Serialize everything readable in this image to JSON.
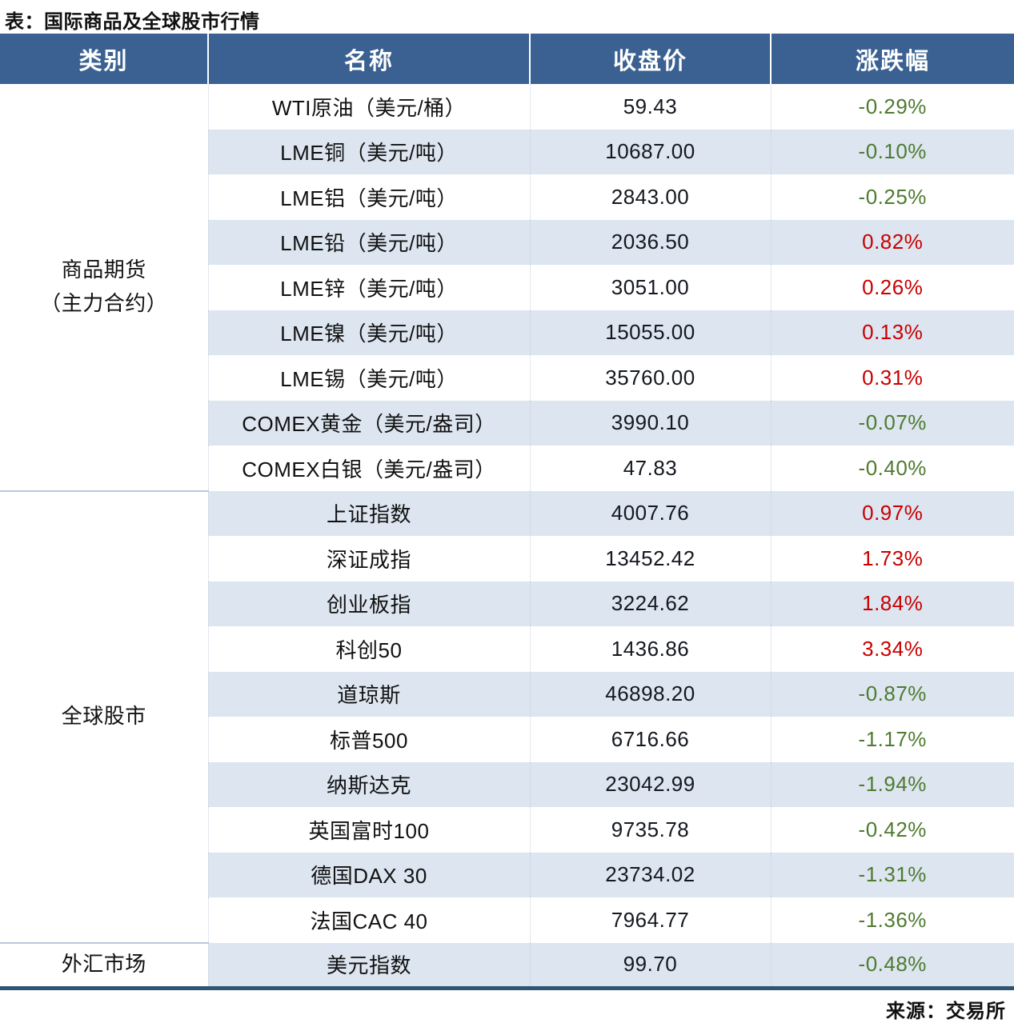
{
  "title": "表：国际商品及全球股市行情",
  "source": "来源：交易所",
  "colors": {
    "header_bg": "#3A6191",
    "stripe_bg": "#DCE5F0",
    "up_red": "#C80000",
    "down_green": "#4E7B2F",
    "bottom_border": "#2F5574"
  },
  "table": {
    "headers": [
      "类别",
      "名称",
      "收盘价",
      "涨跌幅"
    ],
    "sections": [
      {
        "category_lines": [
          "商品期货",
          "（主力合约）"
        ],
        "rows": [
          {
            "name": "WTI原油（美元/桶）",
            "close": "59.43",
            "change": "-0.29%",
            "direction": "down"
          },
          {
            "name": "LME铜（美元/吨）",
            "close": "10687.00",
            "change": "-0.10%",
            "direction": "down"
          },
          {
            "name": "LME铝（美元/吨）",
            "close": "2843.00",
            "change": "-0.25%",
            "direction": "down"
          },
          {
            "name": "LME铅（美元/吨）",
            "close": "2036.50",
            "change": "0.82%",
            "direction": "up"
          },
          {
            "name": "LME锌（美元/吨）",
            "close": "3051.00",
            "change": "0.26%",
            "direction": "up"
          },
          {
            "name": "LME镍（美元/吨）",
            "close": "15055.00",
            "change": "0.13%",
            "direction": "up"
          },
          {
            "name": "LME锡（美元/吨）",
            "close": "35760.00",
            "change": "0.31%",
            "direction": "up"
          },
          {
            "name": "COMEX黄金（美元/盎司）",
            "close": "3990.10",
            "change": "-0.07%",
            "direction": "down"
          },
          {
            "name": "COMEX白银（美元/盎司）",
            "close": "47.83",
            "change": "-0.40%",
            "direction": "down"
          }
        ]
      },
      {
        "category_lines": [
          "全球股市"
        ],
        "rows": [
          {
            "name": "上证指数",
            "close": "4007.76",
            "change": "0.97%",
            "direction": "up"
          },
          {
            "name": "深证成指",
            "close": "13452.42",
            "change": "1.73%",
            "direction": "up"
          },
          {
            "name": "创业板指",
            "close": "3224.62",
            "change": "1.84%",
            "direction": "up"
          },
          {
            "name": "科创50",
            "close": "1436.86",
            "change": "3.34%",
            "direction": "up"
          },
          {
            "name": "道琼斯",
            "close": "46898.20",
            "change": "-0.87%",
            "direction": "down"
          },
          {
            "name": "标普500",
            "close": "6716.66",
            "change": "-1.17%",
            "direction": "down"
          },
          {
            "name": "纳斯达克",
            "close": "23042.99",
            "change": "-1.94%",
            "direction": "down"
          },
          {
            "name": "英国富时100",
            "close": "9735.78",
            "change": "-0.42%",
            "direction": "down"
          },
          {
            "name": "德国DAX 30",
            "close": "23734.02",
            "change": "-1.31%",
            "direction": "down"
          },
          {
            "name": "法国CAC 40",
            "close": "7964.77",
            "change": "-1.36%",
            "direction": "down"
          }
        ]
      },
      {
        "category_lines": [
          "外汇市场"
        ],
        "rows": [
          {
            "name": "美元指数",
            "close": "99.70",
            "change": "-0.48%",
            "direction": "down"
          }
        ]
      }
    ]
  }
}
